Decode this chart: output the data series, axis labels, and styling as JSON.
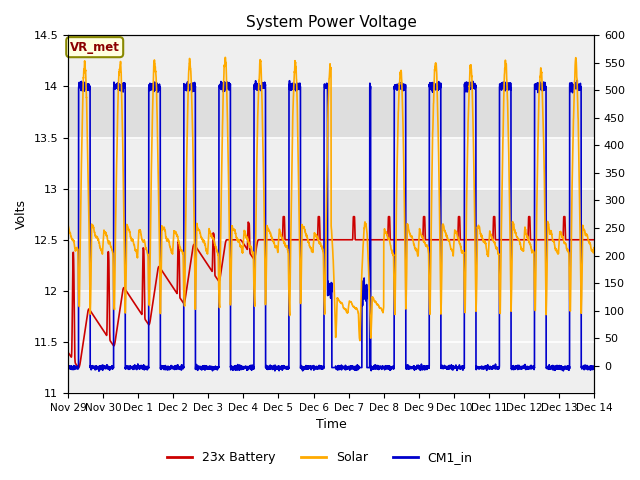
{
  "title": "System Power Voltage",
  "xlabel": "Time",
  "ylabel": "Volts",
  "ylabel_right": "",
  "xlim_start": 0,
  "xlim_end": 15.0,
  "ylim_left": [
    11.0,
    14.5
  ],
  "ylim_right": [
    -50,
    600
  ],
  "yticks_left": [
    11.0,
    11.5,
    12.0,
    12.5,
    13.0,
    13.5,
    14.0,
    14.5
  ],
  "yticks_right": [
    0,
    50,
    100,
    150,
    200,
    250,
    300,
    350,
    400,
    450,
    500,
    550,
    600
  ],
  "xtick_labels": [
    "Nov 29",
    "Nov 30",
    "Dec 1",
    "Dec 2",
    "Dec 3",
    "Dec 4",
    "Dec 5",
    "Dec 6",
    "Dec 7",
    "Dec 8",
    "Dec 9",
    "Dec 10",
    "Dec 11",
    "Dec 12",
    "Dec 13",
    "Dec 14"
  ],
  "xtick_positions": [
    0,
    1,
    2,
    3,
    4,
    5,
    6,
    7,
    8,
    9,
    10,
    11,
    12,
    13,
    14,
    15
  ],
  "color_battery": "#cc0000",
  "color_solar": "#ffaa00",
  "color_cm1": "#0000cc",
  "linewidth": 1.2,
  "annotation_text": "VR_met",
  "shading_ymin": 13.5,
  "shading_ymax": 14.0,
  "shading2_ymin": 12.0,
  "shading2_ymax": 13.0,
  "legend_labels": [
    "23x Battery",
    "Solar",
    "CM1_in"
  ],
  "background_color": "#ffffff"
}
